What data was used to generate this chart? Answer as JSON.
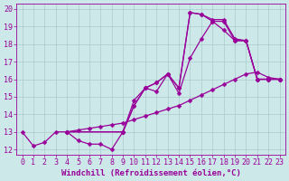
{
  "xlabel": "Windchill (Refroidissement éolien,°C)",
  "xlim": [
    -0.5,
    23.5
  ],
  "ylim": [
    11.7,
    20.3
  ],
  "xticks": [
    0,
    1,
    2,
    3,
    4,
    5,
    6,
    7,
    8,
    9,
    10,
    11,
    12,
    13,
    14,
    15,
    16,
    17,
    18,
    19,
    20,
    21,
    22,
    23
  ],
  "yticks": [
    12,
    13,
    14,
    15,
    16,
    17,
    18,
    19,
    20
  ],
  "bg_color": "#cce8e8",
  "grid_color": "#aacccc",
  "line_color": "#990099",
  "line1_x": [
    0,
    1,
    2,
    3,
    4,
    5,
    6,
    7,
    8,
    9,
    10,
    11,
    12,
    13,
    14,
    15,
    16,
    17,
    18,
    19,
    20,
    21,
    22,
    23
  ],
  "line1_y": [
    13.0,
    12.2,
    12.4,
    13.0,
    13.0,
    12.5,
    12.3,
    12.3,
    12.0,
    13.0,
    14.8,
    15.5,
    15.3,
    16.3,
    15.5,
    19.8,
    19.7,
    19.4,
    19.4,
    18.3,
    18.2,
    16.0,
    16.0,
    16.0
  ],
  "line2_x": [
    4,
    9,
    10,
    11,
    12,
    13,
    14,
    15,
    16,
    17,
    18,
    19,
    20,
    21,
    22,
    23
  ],
  "line2_y": [
    13.0,
    13.0,
    14.5,
    15.5,
    15.8,
    16.3,
    15.5,
    19.8,
    19.7,
    19.3,
    19.3,
    18.2,
    18.2,
    16.0,
    16.0,
    16.0
  ],
  "line3_x": [
    4,
    5,
    6,
    7,
    8,
    9,
    10,
    11,
    12,
    13,
    14,
    15,
    16,
    17,
    18,
    19,
    20,
    21,
    22,
    23
  ],
  "line3_y": [
    13.0,
    13.1,
    13.2,
    13.3,
    13.4,
    13.5,
    13.7,
    13.9,
    14.1,
    14.3,
    14.5,
    14.8,
    15.1,
    15.4,
    15.7,
    16.0,
    16.3,
    16.4,
    16.1,
    16.0
  ],
  "line4_x": [
    4,
    9,
    10,
    11,
    12,
    13,
    14,
    15,
    16,
    17,
    18,
    19,
    20,
    21,
    22,
    23
  ],
  "line4_y": [
    13.0,
    13.0,
    14.5,
    15.5,
    15.8,
    16.3,
    15.2,
    17.2,
    18.3,
    19.3,
    18.8,
    18.2,
    18.2,
    16.0,
    16.0,
    16.0
  ],
  "fontsize_tick": 6,
  "fontsize_label": 6.5
}
